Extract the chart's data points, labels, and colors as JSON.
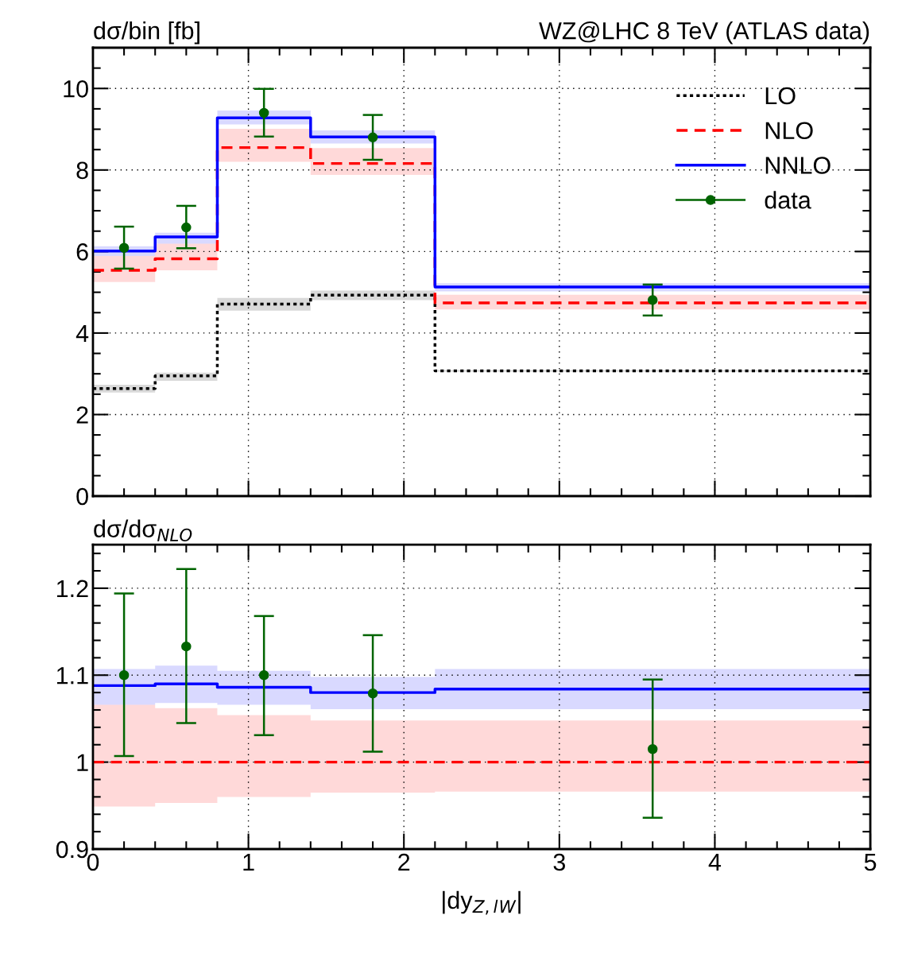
{
  "chart_data": [
    {
      "type": "step",
      "title": "WZ@LHC 8 TeV (ATLAS data)",
      "ylabel": "dσ/bin [fb]",
      "xlim": [
        0,
        5
      ],
      "ylim": [
        0,
        11
      ],
      "xticks": [
        0,
        1,
        2,
        3,
        4,
        5
      ],
      "yticks": [
        0,
        2,
        4,
        6,
        8,
        10
      ],
      "grid": true,
      "legend": "top right",
      "tick_labels": "y",
      "series": [
        {
          "name": "LO",
          "color": "#000000",
          "line_style": "dotted",
          "x": [
            0,
            0.4,
            0.8,
            1.4,
            2.2,
            5
          ],
          "values": [
            2.64,
            2.95,
            4.71,
            4.93,
            3.07,
            3.07
          ],
          "lower": [
            2.54,
            2.83,
            4.55,
            4.81,
            3.05,
            3.05
          ],
          "upper": [
            2.73,
            3.03,
            4.86,
            5.04,
            3.09,
            3.09
          ]
        },
        {
          "name": "NLO",
          "color": "#ff0000",
          "line_style": "dashed",
          "x": [
            0,
            0.4,
            0.8,
            1.4,
            2.2,
            5
          ],
          "values": [
            5.54,
            5.82,
            8.55,
            8.16,
            4.74,
            4.74
          ],
          "lower": [
            5.25,
            5.54,
            8.2,
            7.88,
            4.58,
            4.58
          ],
          "upper": [
            5.89,
            6.19,
            9.01,
            8.54,
            4.94,
            4.94
          ]
        },
        {
          "name": "NNLO",
          "color": "#0000ff",
          "line_style": "solid",
          "x": [
            0,
            0.4,
            0.8,
            1.4,
            2.2,
            5
          ],
          "values": [
            6.01,
            6.36,
            9.28,
            8.81,
            5.13,
            5.13
          ],
          "lower": [
            5.89,
            6.19,
            9.12,
            8.65,
            5.02,
            5.02
          ],
          "upper": [
            6.13,
            6.46,
            9.46,
            8.97,
            5.22,
            5.22
          ]
        },
        {
          "name": "data",
          "type": "scatter",
          "color": "#006400",
          "marker": "circle",
          "x": [
            0.2,
            0.6,
            1.1,
            1.8,
            3.6
          ],
          "values": [
            6.09,
            6.59,
            9.4,
            8.8,
            4.81
          ],
          "errors": [
            [
              5.58,
              6.61
            ],
            [
              6.08,
              7.12
            ],
            [
              8.82,
              9.99
            ],
            [
              8.25,
              9.35
            ],
            [
              4.43,
              5.19
            ]
          ]
        }
      ]
    },
    {
      "type": "step",
      "ylabel": "dσ/dσ$_{NLO}$",
      "xlabel": "|dy$_{Z,l}$$_{W}$|",
      "xlim": [
        0,
        5
      ],
      "ylim": [
        0.9,
        1.25
      ],
      "xticks": [
        0,
        1,
        2,
        3,
        4,
        5
      ],
      "yticks": [
        0.9,
        1,
        1.1,
        1.2
      ],
      "grid": true,
      "series": [
        {
          "color": "#ff0000",
          "line_style": "dashed",
          "x": [
            0,
            0.4,
            0.8,
            1.4,
            2.2,
            5
          ],
          "values": [
            1,
            1,
            1,
            1,
            1,
            1
          ],
          "lower": [
            0.949,
            0.953,
            0.96,
            0.965,
            0.966,
            0.966
          ],
          "upper": [
            1.066,
            1.062,
            1.054,
            1.048,
            1.048,
            1.048
          ]
        },
        {
          "color": "#0000ff",
          "line_style": "solid",
          "x": [
            0,
            0.4,
            0.8,
            1.4,
            2.2,
            5
          ],
          "values": [
            1.088,
            1.09,
            1.086,
            1.08,
            1.084,
            1.084
          ],
          "lower": [
            1.066,
            1.068,
            1.066,
            1.061,
            1.061,
            1.061
          ],
          "upper": [
            1.107,
            1.111,
            1.105,
            1.098,
            1.107,
            1.107
          ]
        },
        {
          "type": "scatter",
          "color": "#006400",
          "marker": "circle",
          "x": [
            0.2,
            0.6,
            1.1,
            1.8,
            3.6
          ],
          "values": [
            1.1,
            1.133,
            1.1,
            1.079,
            1.015
          ],
          "errors": [
            [
              1.007,
              1.194
            ],
            [
              1.045,
              1.222
            ],
            [
              1.031,
              1.168
            ],
            [
              1.012,
              1.146
            ],
            [
              0.936,
              1.095
            ]
          ]
        }
      ]
    }
  ]
}
